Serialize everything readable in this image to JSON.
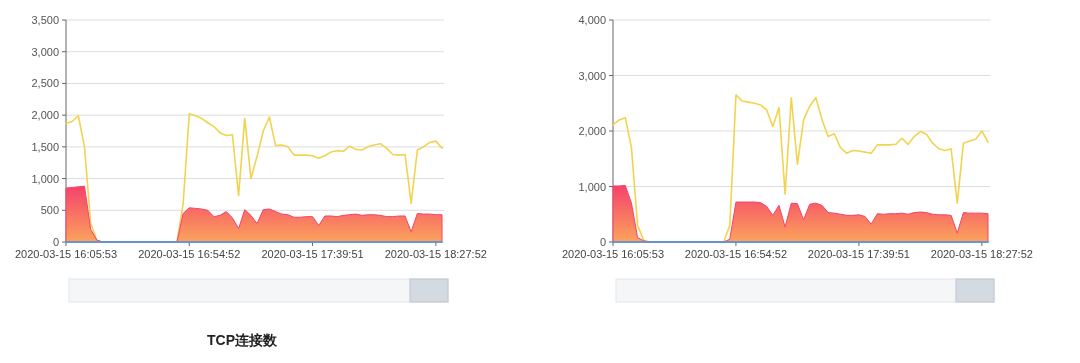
{
  "chart_data": [
    {
      "type": "area",
      "title": "TCP连接数",
      "categories": [
        "2020-03-15 16:05:53",
        null,
        null,
        null,
        null,
        null,
        null,
        null,
        null,
        null,
        null,
        null,
        null,
        null,
        null,
        null,
        null,
        null,
        null,
        null,
        "2020-03-15 16:54:52",
        null,
        null,
        null,
        null,
        null,
        null,
        null,
        null,
        null,
        null,
        null,
        null,
        null,
        null,
        null,
        null,
        null,
        null,
        null,
        "2020-03-15 17:39:51",
        null,
        null,
        null,
        null,
        null,
        null,
        null,
        null,
        null,
        null,
        null,
        null,
        null,
        null,
        null,
        null,
        null,
        null,
        null,
        "2020-03-15 18:27:52",
        null
      ],
      "ylim": [
        0,
        3500
      ],
      "yticks": [
        0,
        {
          "value": 500,
          "label": "500"
        },
        {
          "value": 1000,
          "label": "1,000"
        },
        {
          "value": 1500,
          "label": "1,500"
        },
        {
          "value": 2000,
          "label": "2,000"
        },
        {
          "value": 2500,
          "label": "2,500"
        },
        {
          "value": 3000,
          "label": "3,000"
        },
        {
          "value": 3500,
          "label": "3,500"
        }
      ],
      "grid": "y",
      "series": [
        {
          "type": "line",
          "color": "#f2d34f",
          "values": [
            1870,
            1900,
            1990,
            1500,
            300,
            20,
            0,
            0,
            0,
            0,
            0,
            0,
            0,
            0,
            0,
            0,
            0,
            0,
            0,
            600,
            2020,
            1990,
            1950,
            1880,
            1820,
            1720,
            1680,
            1690,
            730,
            1950,
            1000,
            1350,
            1750,
            1970,
            1520,
            1530,
            1500,
            1370,
            1370,
            1370,
            1360,
            1320,
            1360,
            1420,
            1440,
            1430,
            1510,
            1460,
            1450,
            1500,
            1530,
            1550,
            1480,
            1380,
            1370,
            1380,
            610,
            1450,
            1500,
            1570,
            1590,
            1480
          ]
        },
        {
          "type": "area",
          "color": "#f5426c",
          "values": [
            850,
            860,
            870,
            880,
            200,
            30,
            0,
            0,
            0,
            0,
            0,
            0,
            0,
            0,
            0,
            0,
            0,
            0,
            0,
            450,
            540,
            530,
            520,
            500,
            400,
            420,
            480,
            380,
            210,
            510,
            420,
            290,
            510,
            520,
            480,
            440,
            430,
            390,
            390,
            400,
            400,
            260,
            410,
            410,
            400,
            420,
            430,
            440,
            420,
            430,
            430,
            420,
            400,
            400,
            410,
            410,
            160,
            450,
            440,
            440,
            430,
            430
          ]
        },
        {
          "type": "line",
          "color": "#3ba3f0",
          "values": [
            0,
            0,
            0,
            0,
            0,
            0,
            null,
            null,
            null,
            null,
            null,
            null,
            null,
            null,
            null,
            null,
            null,
            null,
            null,
            0,
            0,
            0,
            0,
            0,
            0,
            0,
            0,
            0,
            0,
            0,
            0,
            0,
            0,
            0,
            0,
            0,
            0,
            0,
            0,
            0,
            0,
            0,
            0,
            0,
            0,
            0,
            0,
            0,
            0,
            0,
            0,
            0,
            0,
            0,
            0,
            0,
            0,
            0,
            0,
            0,
            0,
            0
          ]
        }
      ]
    },
    {
      "type": "area",
      "categories": [
        "2020-03-15 16:05:53",
        null,
        null,
        null,
        null,
        null,
        null,
        null,
        null,
        null,
        null,
        null,
        null,
        null,
        null,
        null,
        null,
        null,
        null,
        null,
        "2020-03-15 16:54:52",
        null,
        null,
        null,
        null,
        null,
        null,
        null,
        null,
        null,
        null,
        null,
        null,
        null,
        null,
        null,
        null,
        null,
        null,
        null,
        "2020-03-15 17:39:51",
        null,
        null,
        null,
        null,
        null,
        null,
        null,
        null,
        null,
        null,
        null,
        null,
        null,
        null,
        null,
        null,
        null,
        null,
        null,
        "2020-03-15 18:27:52",
        null
      ],
      "ylim": [
        0,
        4000
      ],
      "yticks": [
        0,
        {
          "value": 1000,
          "label": "1,000"
        },
        {
          "value": 2000,
          "label": "2,000"
        },
        {
          "value": 3000,
          "label": "3,000"
        },
        {
          "value": 4000,
          "label": "4,000"
        }
      ],
      "grid": "y",
      "series": [
        {
          "type": "line",
          "color": "#f2d34f",
          "values": [
            2110,
            2200,
            2240,
            1700,
            300,
            30,
            0,
            0,
            0,
            0,
            0,
            0,
            0,
            0,
            0,
            0,
            0,
            0,
            0,
            300,
            2650,
            2540,
            2520,
            2500,
            2470,
            2380,
            2080,
            2420,
            860,
            2600,
            1400,
            2200,
            2450,
            2600,
            2200,
            1900,
            1950,
            1700,
            1600,
            1650,
            1640,
            1620,
            1600,
            1750,
            1750,
            1750,
            1760,
            1870,
            1760,
            1900,
            1990,
            1940,
            1780,
            1680,
            1650,
            1680,
            700,
            1780,
            1820,
            1850,
            2000,
            1800
          ]
        },
        {
          "type": "area",
          "color": "#f5426c",
          "values": [
            1010,
            1010,
            1020,
            700,
            80,
            20,
            0,
            0,
            0,
            0,
            0,
            0,
            0,
            0,
            0,
            0,
            0,
            0,
            0,
            50,
            720,
            720,
            720,
            720,
            710,
            640,
            480,
            660,
            270,
            700,
            690,
            400,
            680,
            700,
            660,
            530,
            520,
            500,
            480,
            480,
            490,
            460,
            320,
            510,
            500,
            510,
            510,
            520,
            500,
            530,
            540,
            530,
            500,
            490,
            490,
            480,
            160,
            530,
            520,
            520,
            520,
            510
          ]
        },
        {
          "type": "line",
          "color": "#3ba3f0",
          "values": [
            0,
            0,
            0,
            0,
            0,
            0,
            null,
            null,
            null,
            null,
            null,
            null,
            null,
            null,
            null,
            null,
            null,
            null,
            null,
            0,
            0,
            0,
            0,
            0,
            0,
            0,
            0,
            0,
            0,
            0,
            0,
            0,
            0,
            0,
            0,
            0,
            0,
            0,
            0,
            0,
            0,
            0,
            0,
            0,
            0,
            0,
            0,
            0,
            0,
            0,
            0,
            0,
            0,
            0,
            0,
            0,
            0,
            0,
            0,
            0,
            0,
            0
          ]
        }
      ]
    }
  ]
}
